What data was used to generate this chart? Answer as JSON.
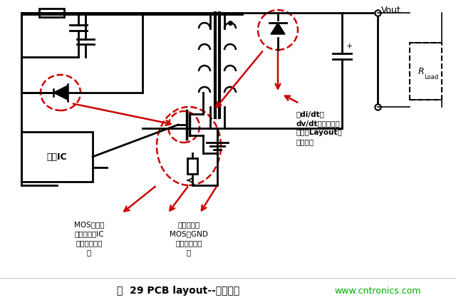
{
  "title": "图  29 PCB layout--高频走线",
  "title_color": "#000000",
  "website": "www.cntronics.com",
  "website_color": "#00aa00",
  "bg_color": "#ffffff",
  "annotation1": "高di/dt、\ndv/dt，引线尽可\n能短，Layout避\n免走直角",
  "annotation2": "MOS和检流\n电阻到控制IC\n距离应尽可能\n短",
  "annotation3": "检流电阻与\nMOS和GND\n的距离尽可能\n短",
  "label_vout": "Vout",
  "label_rload": "R",
  "label_rload2": "Load",
  "label_ic": "控制IC"
}
